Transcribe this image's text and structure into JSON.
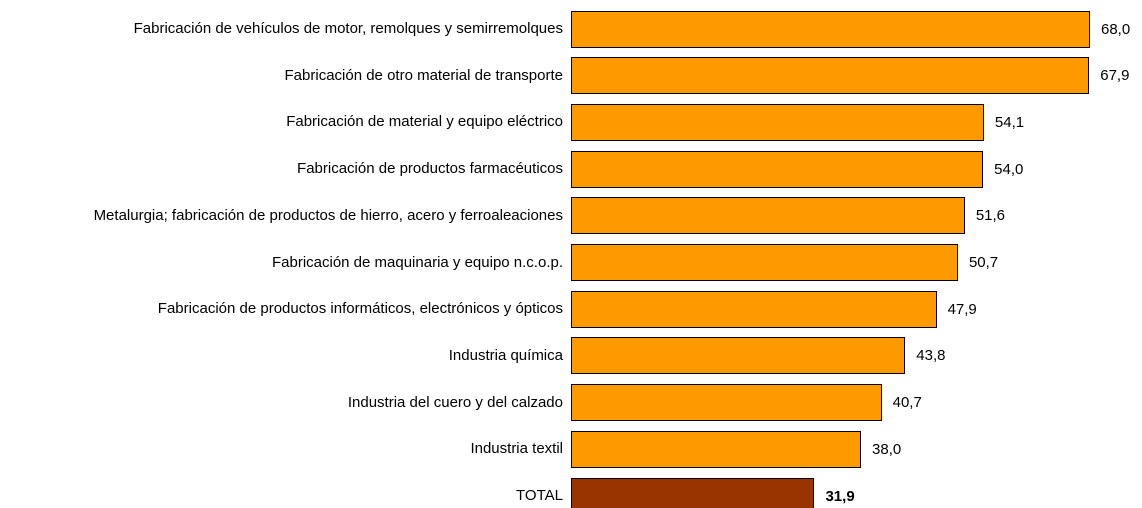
{
  "chart_data": {
    "type": "bar",
    "orientation": "horizontal",
    "categories": [
      "Fabricación de vehículos de motor, remolques y semirremolques",
      "Fabricación de otro material de transporte",
      "Fabricación de material y equipo eléctrico",
      "Fabricación de productos farmacéuticos",
      "Metalurgia; fabricación de productos de hierro, acero y ferroaleaciones",
      "Fabricación de maquinaria y equipo n.c.o.p.",
      "Fabricación de productos informáticos, electrónicos y ópticos",
      "Industria química",
      "Industria del cuero y del calzado",
      "Industria textil",
      "TOTAL"
    ],
    "values": [
      68.0,
      67.9,
      54.1,
      54.0,
      51.6,
      50.7,
      47.9,
      43.8,
      40.7,
      38.0,
      31.9
    ],
    "value_labels": [
      "68,0",
      "67,9",
      "54,1",
      "54,0",
      "51,6",
      "50,7",
      "47,9",
      "43,8",
      "40,7",
      "38,0",
      "31,9"
    ],
    "colors": [
      "#ff9900",
      "#ff9900",
      "#ff9900",
      "#ff9900",
      "#ff9900",
      "#ff9900",
      "#ff9900",
      "#ff9900",
      "#ff9900",
      "#ff9900",
      "#993300"
    ]
  }
}
